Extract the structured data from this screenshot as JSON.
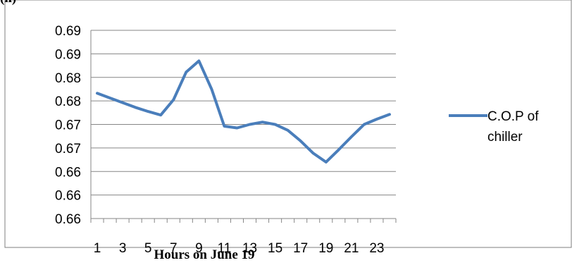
{
  "top_label": "(ii)",
  "caption": "Hours on June 19",
  "chart_data": {
    "type": "line",
    "xlabel": "",
    "ylabel": "",
    "x_tick_labels": [
      "1",
      "3",
      "5",
      "7",
      "9",
      "11",
      "13",
      "15",
      "17",
      "19",
      "21",
      "23"
    ],
    "y_tick_labels": [
      "0.66",
      "0.66",
      "0.66",
      "0.67",
      "0.67",
      "0.68",
      "0.68",
      "0.69",
      "0.69"
    ],
    "ylim": [
      0.658,
      0.69
    ],
    "grid": true,
    "legend_position": "right",
    "series": [
      {
        "name": "C.O.P   of chiller",
        "color": "#4a7ebb",
        "x": [
          1,
          2,
          3,
          4,
          5,
          6,
          7,
          8,
          9,
          10,
          11,
          12,
          13,
          14,
          15,
          16,
          17,
          18,
          19,
          20,
          21,
          22,
          23,
          24
        ],
        "y": [
          0.6793,
          0.6785,
          0.6777,
          0.6769,
          0.6762,
          0.6756,
          0.6782,
          0.6829,
          0.6848,
          0.68,
          0.6737,
          0.6734,
          0.674,
          0.6744,
          0.674,
          0.673,
          0.6712,
          0.6691,
          0.6676,
          0.6697,
          0.6719,
          0.674,
          0.6749,
          0.6757
        ]
      }
    ]
  }
}
